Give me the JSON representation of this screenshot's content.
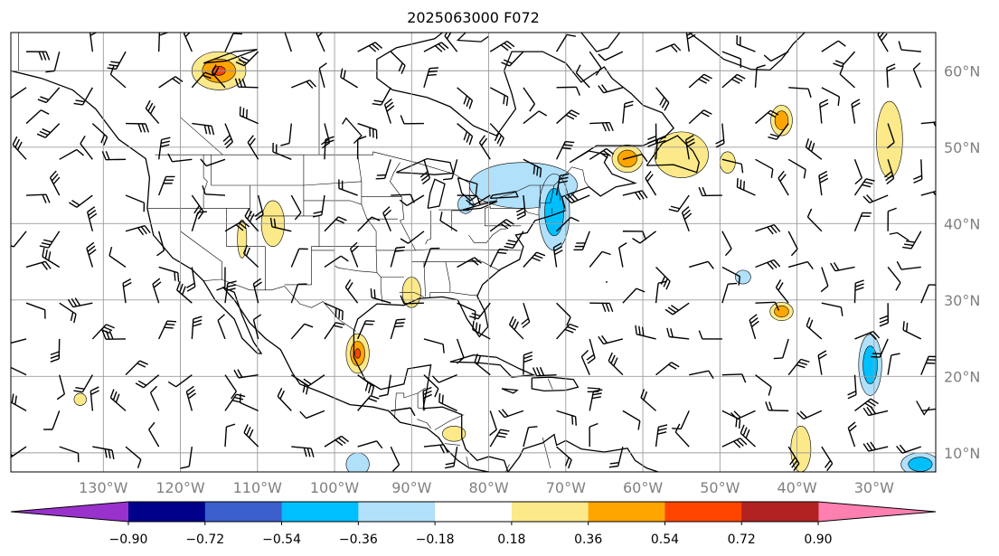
{
  "title": "2025063000 F072",
  "map": {
    "projection": "cylindrical",
    "lon_range": [
      -142,
      -22
    ],
    "lat_range": [
      7.5,
      65
    ],
    "lon_ticks": [
      {
        "lon": -130,
        "label": "130°W"
      },
      {
        "lon": -120,
        "label": "120°W"
      },
      {
        "lon": -110,
        "label": "110°W"
      },
      {
        "lon": -100,
        "label": "100°W"
      },
      {
        "lon": -90,
        "label": "90°W"
      },
      {
        "lon": -80,
        "label": "80°W"
      },
      {
        "lon": -70,
        "label": "70°W"
      },
      {
        "lon": -60,
        "label": "60°W"
      },
      {
        "lon": -50,
        "label": "50°W"
      },
      {
        "lon": -40,
        "label": "40°W"
      },
      {
        "lon": -30,
        "label": "30°W"
      }
    ],
    "lat_ticks": [
      {
        "lat": 60,
        "label": "60°N"
      },
      {
        "lat": 50,
        "label": "50°N"
      },
      {
        "lat": 40,
        "label": "40°N"
      },
      {
        "lat": 30,
        "label": "30°N"
      },
      {
        "lat": 20,
        "label": "20°N"
      },
      {
        "lat": 10,
        "label": "10°N"
      }
    ],
    "gridlines": true,
    "layers": [
      "filled-contours",
      "wind-barbs",
      "coastlines",
      "political-borders"
    ]
  },
  "colorbar": {
    "levels": [
      -0.9,
      -0.72,
      -0.54,
      -0.36,
      -0.18,
      0.18,
      0.36,
      0.54,
      0.72,
      0.9
    ],
    "labels": [
      "−0.90",
      "−0.72",
      "−0.54",
      "−0.36",
      "−0.18",
      "0.18",
      "0.36",
      "0.54",
      "0.72",
      "0.90"
    ],
    "colors": [
      "#9932cc",
      "#00008b",
      "#3a5fcd",
      "#00bfff",
      "#b0e0fa",
      "#ffffff",
      "#fce98a",
      "#ffa500",
      "#ff4500",
      "#b22222",
      "#ff80b0"
    ],
    "extend": "both"
  },
  "contour_blobs": [
    {
      "lon": -115,
      "lat": 60,
      "rx": 3.5,
      "ry": 2.5,
      "levels": [
        0.18,
        0.36,
        0.54
      ]
    },
    {
      "lon": -108,
      "lat": 40,
      "rx": 1.5,
      "ry": 3,
      "levels": [
        0.18
      ]
    },
    {
      "lon": -112,
      "lat": 38,
      "rx": 0.6,
      "ry": 2.5,
      "levels": [
        0.18
      ]
    },
    {
      "lon": -90,
      "lat": 31,
      "rx": 1.2,
      "ry": 2,
      "levels": [
        0.18
      ]
    },
    {
      "lon": -97,
      "lat": 23,
      "rx": 1.5,
      "ry": 2.6,
      "levels": [
        0.18,
        0.36,
        0.54
      ]
    },
    {
      "lon": -133,
      "lat": 17,
      "rx": 0.8,
      "ry": 0.8,
      "levels": [
        0.18
      ]
    },
    {
      "lon": -84.5,
      "lat": 12.5,
      "rx": 1.5,
      "ry": 1,
      "levels": [
        0.18
      ]
    },
    {
      "lon": -62,
      "lat": 48.5,
      "rx": 2,
      "ry": 1.8,
      "levels": [
        0.18,
        0.36
      ]
    },
    {
      "lon": -55,
      "lat": 49,
      "rx": 3.5,
      "ry": 3,
      "levels": [
        0.18
      ]
    },
    {
      "lon": -49,
      "lat": 48,
      "rx": 1,
      "ry": 1.4,
      "levels": [
        0.18
      ]
    },
    {
      "lon": -42,
      "lat": 53.5,
      "rx": 1.4,
      "ry": 2,
      "levels": [
        0.18,
        0.36
      ]
    },
    {
      "lon": -28,
      "lat": 51,
      "rx": 1.7,
      "ry": 5,
      "levels": [
        0.18
      ]
    },
    {
      "lon": -42,
      "lat": 28.5,
      "rx": 1.5,
      "ry": 1.2,
      "levels": [
        0.18,
        0.36
      ]
    },
    {
      "lon": -39.5,
      "lat": 10.5,
      "rx": 1.3,
      "ry": 3,
      "levels": [
        0.18
      ]
    },
    {
      "lon": -75.5,
      "lat": 45,
      "rx": 7,
      "ry": 3,
      "levels": [
        -0.18
      ]
    },
    {
      "lon": -71.5,
      "lat": 41.5,
      "rx": 2,
      "ry": 5,
      "levels": [
        -0.18,
        -0.36
      ]
    },
    {
      "lon": -83,
      "lat": 42.5,
      "rx": 1,
      "ry": 1.2,
      "levels": [
        -0.18
      ]
    },
    {
      "lon": -30.5,
      "lat": 21.5,
      "rx": 1.5,
      "ry": 4,
      "levels": [
        -0.18,
        -0.36
      ]
    },
    {
      "lon": -24,
      "lat": 8.5,
      "rx": 2.5,
      "ry": 1.5,
      "levels": [
        -0.18,
        -0.36
      ]
    },
    {
      "lon": -97,
      "lat": 8.5,
      "rx": 1.5,
      "ry": 1.5,
      "levels": [
        -0.18
      ]
    },
    {
      "lon": -47,
      "lat": 33,
      "rx": 1,
      "ry": 0.9,
      "levels": [
        -0.18
      ]
    }
  ]
}
